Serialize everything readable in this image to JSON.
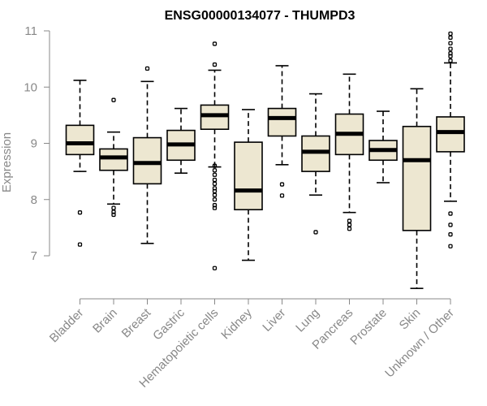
{
  "chart_data": {
    "type": "boxplot",
    "title": "ENSG00000134077 - THUMPD3",
    "xlabel": "",
    "ylabel": "Expression",
    "ylim": [
      6.3,
      11.1
    ],
    "yticks": [
      7,
      8,
      9,
      10,
      11
    ],
    "categories": [
      "Bladder",
      "Brain",
      "Breast",
      "Gastric",
      "Hematopoietic cells",
      "Kidney",
      "Liver",
      "Lung",
      "Pancreas",
      "Prostate",
      "Skin",
      "Unknown / Other"
    ],
    "boxes": [
      {
        "name": "Bladder",
        "whisker_low": 8.5,
        "q1": 8.8,
        "median": 9.0,
        "q3": 9.32,
        "whisker_high": 10.12,
        "outliers": [
          7.77,
          7.2
        ]
      },
      {
        "name": "Brain",
        "whisker_low": 7.92,
        "q1": 8.52,
        "median": 8.75,
        "q3": 8.9,
        "whisker_high": 9.2,
        "outliers": [
          9.77,
          7.85,
          7.78,
          7.73
        ]
      },
      {
        "name": "Breast",
        "whisker_low": 7.22,
        "q1": 8.28,
        "median": 8.65,
        "q3": 9.1,
        "whisker_high": 10.1,
        "outliers": [
          10.33
        ]
      },
      {
        "name": "Gastric",
        "whisker_low": 8.47,
        "q1": 8.7,
        "median": 8.98,
        "q3": 9.23,
        "whisker_high": 9.62,
        "outliers": []
      },
      {
        "name": "Hematopoietic cells",
        "whisker_low": 8.58,
        "q1": 9.25,
        "median": 9.5,
        "q3": 9.68,
        "whisker_high": 10.3,
        "outliers": [
          10.77,
          10.4,
          8.6,
          8.52,
          8.44,
          8.35,
          8.28,
          8.2,
          8.15,
          8.08,
          8.0,
          7.9,
          7.85,
          6.78
        ]
      },
      {
        "name": "Kidney",
        "whisker_low": 6.92,
        "q1": 7.82,
        "median": 8.16,
        "q3": 9.02,
        "whisker_high": 9.6,
        "outliers": []
      },
      {
        "name": "Liver",
        "whisker_low": 8.62,
        "q1": 9.13,
        "median": 9.45,
        "q3": 9.62,
        "whisker_high": 10.38,
        "outliers": [
          8.27,
          8.07
        ]
      },
      {
        "name": "Lung",
        "whisker_low": 8.08,
        "q1": 8.5,
        "median": 8.85,
        "q3": 9.13,
        "whisker_high": 9.88,
        "outliers": [
          7.42
        ]
      },
      {
        "name": "Pancreas",
        "whisker_low": 7.77,
        "q1": 8.8,
        "median": 9.17,
        "q3": 9.52,
        "whisker_high": 10.23,
        "outliers": [
          7.62,
          7.55,
          7.48
        ]
      },
      {
        "name": "Prostate",
        "whisker_low": 8.3,
        "q1": 8.7,
        "median": 8.88,
        "q3": 9.05,
        "whisker_high": 9.57,
        "outliers": []
      },
      {
        "name": "Skin",
        "whisker_low": 6.42,
        "q1": 7.45,
        "median": 8.7,
        "q3": 9.3,
        "whisker_high": 9.97,
        "outliers": []
      },
      {
        "name": "Unknown / Other",
        "whisker_low": 7.97,
        "q1": 8.85,
        "median": 9.2,
        "q3": 9.47,
        "whisker_high": 10.43,
        "outliers": [
          10.95,
          10.88,
          10.78,
          10.68,
          10.6,
          10.55,
          10.47,
          7.75,
          7.55,
          7.38,
          7.17
        ]
      }
    ],
    "box_fill": "#ede7d1",
    "grid": false,
    "legend": "none"
  }
}
